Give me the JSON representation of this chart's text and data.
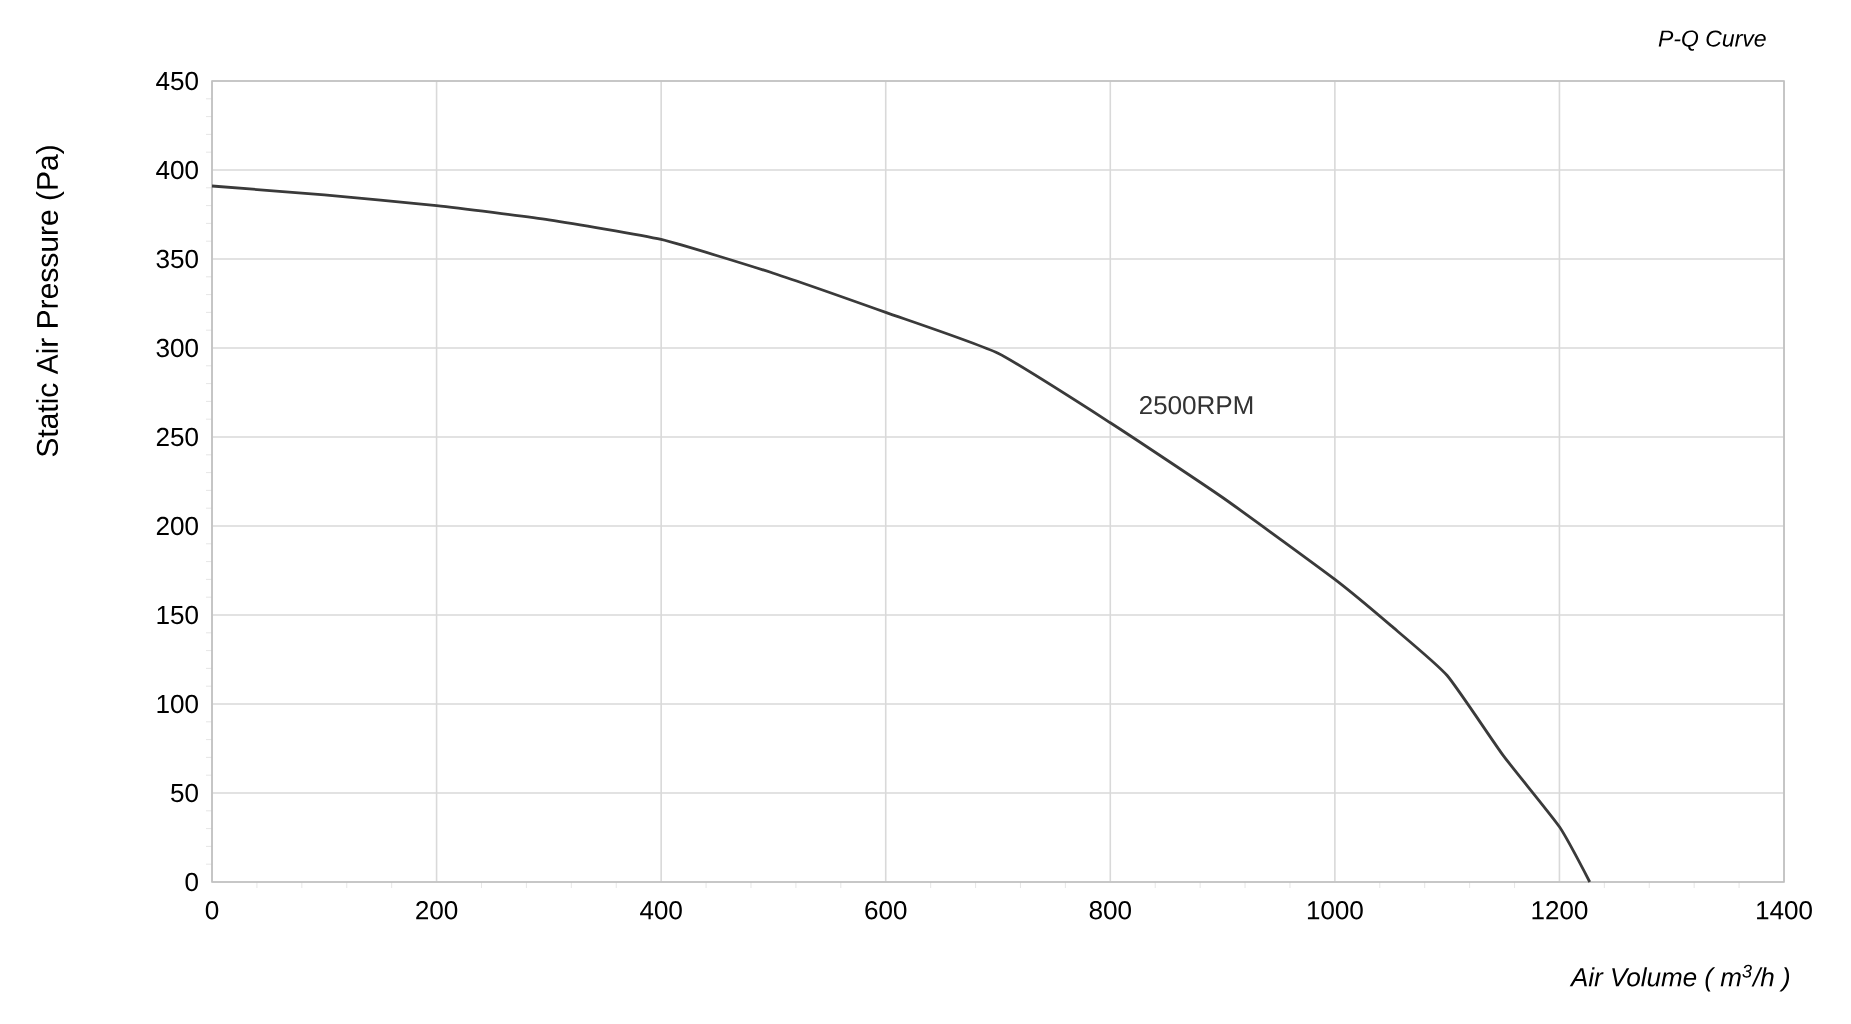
{
  "chart_data": {
    "type": "line",
    "title": "P-Q Curve",
    "xlabel": "Air Volume ( m$^{3}$/h )",
    "ylabel": "Static Air Pressure  (Pa)",
    "series": [
      {
        "name": "2500RPM",
        "color": "#3a3a3a",
        "x": [
          0,
          100,
          200,
          300,
          400,
          500,
          600,
          700,
          800,
          900,
          1000,
          1050,
          1100,
          1150,
          1200,
          1227
        ],
        "values": [
          391,
          386,
          380,
          372,
          361,
          342,
          320,
          297,
          258,
          216,
          170,
          144,
          116,
          71,
          31,
          0
        ]
      }
    ],
    "xlim": [
      0,
      1400
    ],
    "xticks": [
      0,
      200,
      400,
      600,
      800,
      1000,
      1200,
      1400
    ],
    "ylim": [
      0,
      450
    ],
    "yticks": [
      0,
      50,
      100,
      150,
      200,
      250,
      300,
      350,
      400,
      450
    ],
    "grid": true,
    "legend": false,
    "marker": "none",
    "line_style": "solid"
  }
}
